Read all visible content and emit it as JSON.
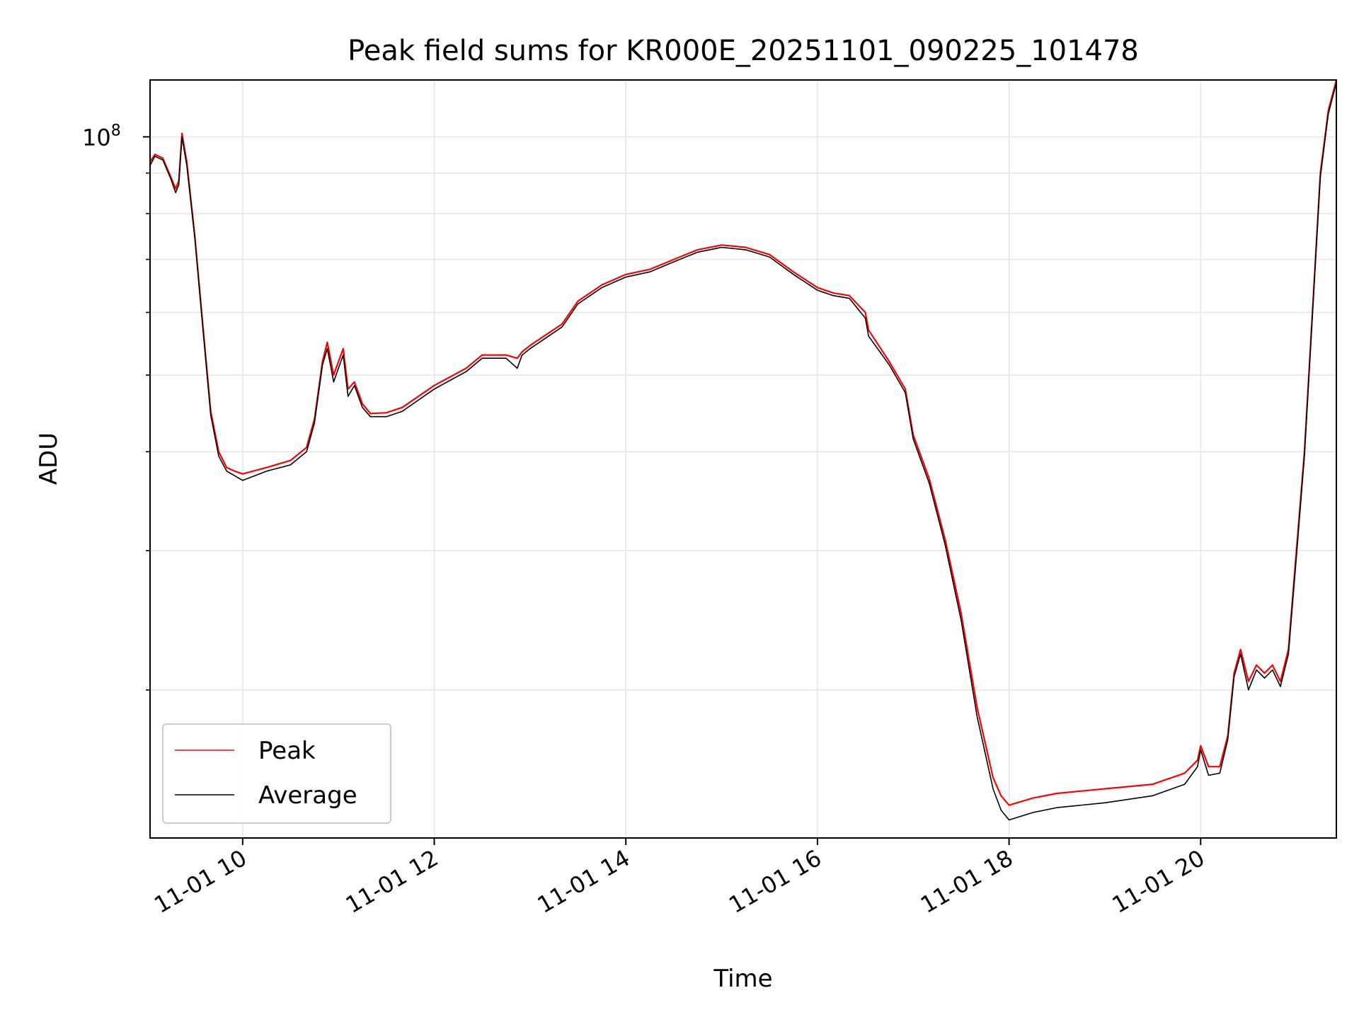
{
  "chart_data": {
    "type": "line",
    "title": "Peak field sums for KR000E_20251101_090225_101478",
    "xlabel": "Time",
    "ylabel": "ADU",
    "x_type": "time",
    "xlim": [
      "2025-11-01T09:02:00",
      "2025-11-01T21:25:00"
    ],
    "ylim": [
      13000000,
      118000000
    ],
    "y_scale": "log",
    "x_ticks": [
      {
        "label": "11-01 10",
        "value": "2025-11-01T10:00:00"
      },
      {
        "label": "11-01 12",
        "value": "2025-11-01T12:00:00"
      },
      {
        "label": "11-01 14",
        "value": "2025-11-01T14:00:00"
      },
      {
        "label": "11-01 16",
        "value": "2025-11-01T16:00:00"
      },
      {
        "label": "11-01 18",
        "value": "2025-11-01T18:00:00"
      },
      {
        "label": "11-01 20",
        "value": "2025-11-01T20:00:00"
      }
    ],
    "y_major_ticks": [
      {
        "base": "10",
        "exp": "8",
        "value": 100000000
      }
    ],
    "y_minor_ticks": [
      20000000,
      30000000,
      40000000,
      50000000,
      60000000,
      70000000,
      80000000,
      90000000
    ],
    "grid": true,
    "legend_position": "lower-left",
    "series": [
      {
        "name": "Peak",
        "color": "#ff0000",
        "x": [
          "2025-11-01T09:02:00",
          "2025-11-01T09:05:00",
          "2025-11-01T09:10:00",
          "2025-11-01T09:15:00",
          "2025-11-01T09:18:00",
          "2025-11-01T09:20:00",
          "2025-11-01T09:22:00",
          "2025-11-01T09:25:00",
          "2025-11-01T09:30:00",
          "2025-11-01T09:35:00",
          "2025-11-01T09:40:00",
          "2025-11-01T09:45:00",
          "2025-11-01T09:50:00",
          "2025-11-01T09:55:00",
          "2025-11-01T10:00:00",
          "2025-11-01T10:15:00",
          "2025-11-01T10:30:00",
          "2025-11-01T10:40:00",
          "2025-11-01T10:45:00",
          "2025-11-01T10:50:00",
          "2025-11-01T10:53:00",
          "2025-11-01T10:57:00",
          "2025-11-01T11:00:00",
          "2025-11-01T11:03:00",
          "2025-11-01T11:06:00",
          "2025-11-01T11:10:00",
          "2025-11-01T11:15:00",
          "2025-11-01T11:20:00",
          "2025-11-01T11:30:00",
          "2025-11-01T11:40:00",
          "2025-11-01T12:00:00",
          "2025-11-01T12:20:00",
          "2025-11-01T12:30:00",
          "2025-11-01T12:45:00",
          "2025-11-01T12:52:00",
          "2025-11-01T12:55:00",
          "2025-11-01T13:00:00",
          "2025-11-01T13:20:00",
          "2025-11-01T13:30:00",
          "2025-11-01T13:45:00",
          "2025-11-01T14:00:00",
          "2025-11-01T14:15:00",
          "2025-11-01T14:30:00",
          "2025-11-01T14:45:00",
          "2025-11-01T15:00:00",
          "2025-11-01T15:15:00",
          "2025-11-01T15:30:00",
          "2025-11-01T15:45:00",
          "2025-11-01T16:00:00",
          "2025-11-01T16:10:00",
          "2025-11-01T16:20:00",
          "2025-11-01T16:30:00",
          "2025-11-01T16:32:00",
          "2025-11-01T16:45:00",
          "2025-11-01T16:55:00",
          "2025-11-01T17:00:00",
          "2025-11-01T17:10:00",
          "2025-11-01T17:20:00",
          "2025-11-01T17:30:00",
          "2025-11-01T17:40:00",
          "2025-11-01T17:50:00",
          "2025-11-01T17:55:00",
          "2025-11-01T18:00:00",
          "2025-11-01T18:15:00",
          "2025-11-01T18:30:00",
          "2025-11-01T19:00:00",
          "2025-11-01T19:30:00",
          "2025-11-01T19:50:00",
          "2025-11-01T19:58:00",
          "2025-11-01T20:00:00",
          "2025-11-01T20:05:00",
          "2025-11-01T20:12:00",
          "2025-11-01T20:17:00",
          "2025-11-01T20:21:00",
          "2025-11-01T20:25:00",
          "2025-11-01T20:30:00",
          "2025-11-01T20:35:00",
          "2025-11-01T20:40:00",
          "2025-11-01T20:45:00",
          "2025-11-01T20:50:00",
          "2025-11-01T20:55:00",
          "2025-11-01T21:00:00",
          "2025-11-01T21:05:00",
          "2025-11-01T21:10:00",
          "2025-11-01T21:15:00",
          "2025-11-01T21:20:00",
          "2025-11-01T21:25:00"
        ],
        "values": [
          93000000,
          95000000,
          94000000,
          89000000,
          86000000,
          88000000,
          101000000,
          93000000,
          75000000,
          58000000,
          45000000,
          40000000,
          38200000,
          37800000,
          37500000,
          38200000,
          39000000,
          40500000,
          44000000,
          52000000,
          55000000,
          50000000,
          52000000,
          54000000,
          48000000,
          49000000,
          46000000,
          44700000,
          44800000,
          45500000,
          48500000,
          51000000,
          53000000,
          53000000,
          52500000,
          53500000,
          54500000,
          58000000,
          62000000,
          65000000,
          67000000,
          68000000,
          70000000,
          72000000,
          73000000,
          72500000,
          71000000,
          67500000,
          64500000,
          63500000,
          63000000,
          60000000,
          57000000,
          52000000,
          48000000,
          42000000,
          37000000,
          31000000,
          25000000,
          19000000,
          15500000,
          14700000,
          14300000,
          14600000,
          14800000,
          15000000,
          15200000,
          15700000,
          16300000,
          17000000,
          16000000,
          16000000,
          17500000,
          21000000,
          22500000,
          20500000,
          21500000,
          21000000,
          21500000,
          20500000,
          22500000,
          30000000,
          40000000,
          60000000,
          90000000,
          108000000,
          118000000
        ]
      },
      {
        "name": "Average",
        "color": "#000000",
        "x": [
          "2025-11-01T09:02:00",
          "2025-11-01T09:05:00",
          "2025-11-01T09:10:00",
          "2025-11-01T09:15:00",
          "2025-11-01T09:18:00",
          "2025-11-01T09:20:00",
          "2025-11-01T09:22:00",
          "2025-11-01T09:25:00",
          "2025-11-01T09:30:00",
          "2025-11-01T09:35:00",
          "2025-11-01T09:40:00",
          "2025-11-01T09:45:00",
          "2025-11-01T09:50:00",
          "2025-11-01T09:55:00",
          "2025-11-01T10:00:00",
          "2025-11-01T10:15:00",
          "2025-11-01T10:30:00",
          "2025-11-01T10:40:00",
          "2025-11-01T10:45:00",
          "2025-11-01T10:50:00",
          "2025-11-01T10:53:00",
          "2025-11-01T10:57:00",
          "2025-11-01T11:00:00",
          "2025-11-01T11:03:00",
          "2025-11-01T11:06:00",
          "2025-11-01T11:10:00",
          "2025-11-01T11:15:00",
          "2025-11-01T11:20:00",
          "2025-11-01T11:30:00",
          "2025-11-01T11:40:00",
          "2025-11-01T12:00:00",
          "2025-11-01T12:20:00",
          "2025-11-01T12:30:00",
          "2025-11-01T12:45:00",
          "2025-11-01T12:52:00",
          "2025-11-01T12:55:00",
          "2025-11-01T13:00:00",
          "2025-11-01T13:20:00",
          "2025-11-01T13:30:00",
          "2025-11-01T13:45:00",
          "2025-11-01T14:00:00",
          "2025-11-01T14:15:00",
          "2025-11-01T14:30:00",
          "2025-11-01T14:45:00",
          "2025-11-01T15:00:00",
          "2025-11-01T15:15:00",
          "2025-11-01T15:30:00",
          "2025-11-01T15:45:00",
          "2025-11-01T16:00:00",
          "2025-11-01T16:10:00",
          "2025-11-01T16:20:00",
          "2025-11-01T16:30:00",
          "2025-11-01T16:32:00",
          "2025-11-01T16:45:00",
          "2025-11-01T16:55:00",
          "2025-11-01T17:00:00",
          "2025-11-01T17:10:00",
          "2025-11-01T17:20:00",
          "2025-11-01T17:30:00",
          "2025-11-01T17:40:00",
          "2025-11-01T17:50:00",
          "2025-11-01T17:55:00",
          "2025-11-01T18:00:00",
          "2025-11-01T18:15:00",
          "2025-11-01T18:30:00",
          "2025-11-01T19:00:00",
          "2025-11-01T19:30:00",
          "2025-11-01T19:50:00",
          "2025-11-01T19:58:00",
          "2025-11-01T20:00:00",
          "2025-11-01T20:05:00",
          "2025-11-01T20:12:00",
          "2025-11-01T20:17:00",
          "2025-11-01T20:21:00",
          "2025-11-01T20:25:00",
          "2025-11-01T20:30:00",
          "2025-11-01T20:35:00",
          "2025-11-01T20:40:00",
          "2025-11-01T20:45:00",
          "2025-11-01T20:50:00",
          "2025-11-01T20:55:00",
          "2025-11-01T21:00:00",
          "2025-11-01T21:05:00",
          "2025-11-01T21:10:00",
          "2025-11-01T21:15:00",
          "2025-11-01T21:20:00",
          "2025-11-01T21:25:00"
        ],
        "values": [
          92000000,
          94500000,
          93500000,
          88500000,
          85000000,
          87000000,
          100000000,
          92000000,
          74500000,
          57500000,
          44500000,
          39500000,
          37800000,
          37300000,
          36800000,
          37800000,
          38500000,
          40000000,
          43500000,
          51500000,
          54000000,
          49000000,
          51000000,
          53000000,
          47000000,
          48500000,
          45500000,
          44300000,
          44300000,
          45000000,
          48000000,
          50500000,
          52500000,
          52500000,
          51000000,
          53000000,
          54000000,
          57500000,
          61500000,
          64500000,
          66500000,
          67500000,
          69500000,
          71500000,
          72500000,
          72000000,
          70500000,
          67000000,
          64000000,
          63000000,
          62500000,
          59000000,
          56000000,
          51500000,
          47500000,
          41500000,
          36500000,
          30500000,
          24500000,
          18500000,
          15000000,
          14100000,
          13700000,
          14000000,
          14200000,
          14400000,
          14700000,
          15200000,
          16000000,
          16800000,
          15600000,
          15700000,
          17300000,
          20800000,
          22200000,
          20000000,
          21200000,
          20700000,
          21200000,
          20200000,
          22200000,
          29500000,
          39500000,
          59500000,
          89000000,
          107000000,
          117000000
        ]
      }
    ]
  }
}
